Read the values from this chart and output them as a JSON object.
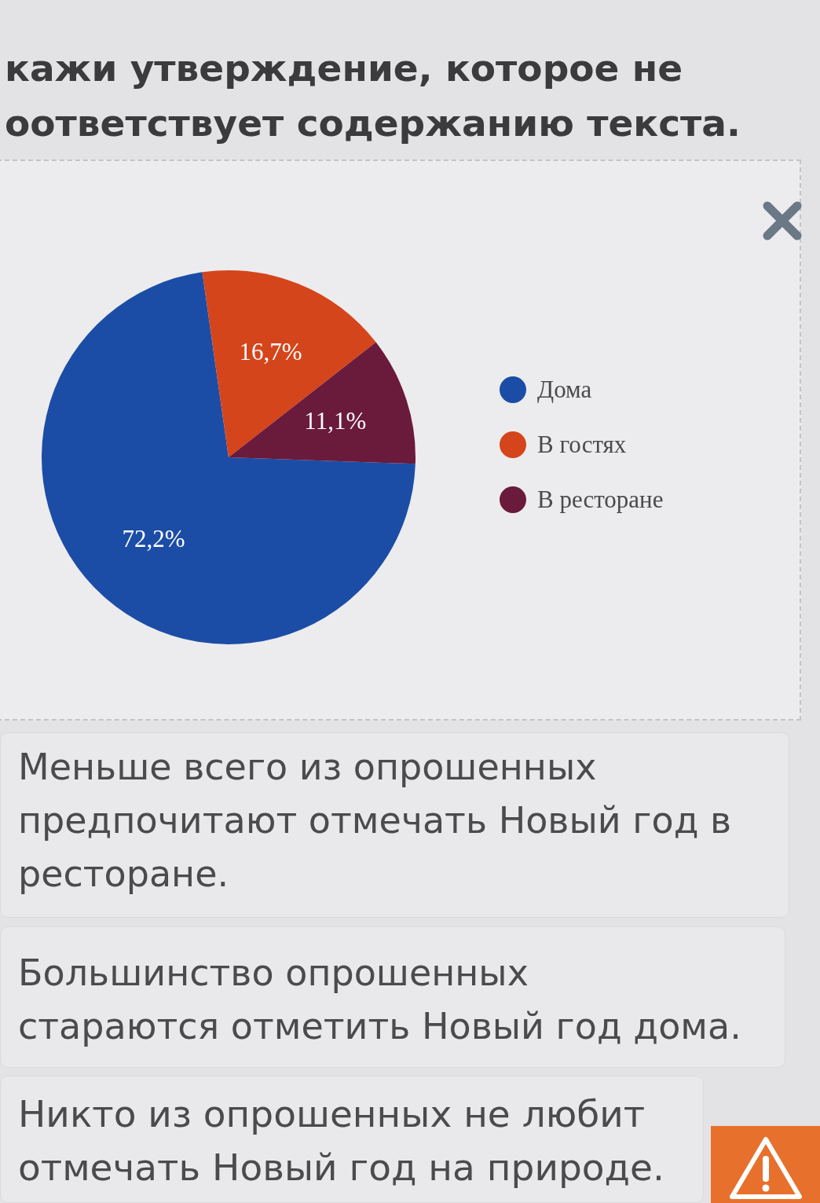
{
  "chart_data": {
    "type": "pie",
    "title": "кажи утверждение, которое не оответствует содержанию текста.",
    "categories": [
      "Дома",
      "В гостях",
      "В ресторане"
    ],
    "values": [
      72.2,
      16.7,
      11.1
    ],
    "value_labels": [
      "72,2%",
      "16,7%",
      "11,1%"
    ],
    "colors": [
      "#1c4da6",
      "#d5451b",
      "#6a1a3b"
    ],
    "legend": "right",
    "annotations": [
      "Меньше всего из опрошенных предпочитают отмечать Новый год в ресторане.",
      "Большинство опрошенных стараются отметить Новый год дома.",
      "Никто из опрошенных не любит отмечать Новый год на природе."
    ]
  }
}
